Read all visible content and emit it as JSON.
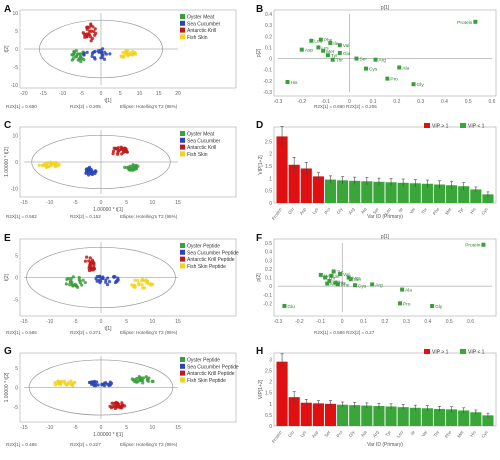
{
  "figure": {
    "panel_letters": [
      "A",
      "B",
      "C",
      "D",
      "E",
      "F",
      "G",
      "H"
    ]
  },
  "colors": {
    "green": "#3a9e3a",
    "blue": "#2b44b8",
    "red": "#c01818",
    "yellow": "#f2d21e",
    "vip_high": "#e01010",
    "vip_low": "#3aa63a"
  },
  "chart_data": [
    {
      "panel": "A",
      "type": "scatter",
      "kind": "score",
      "xlabel": "t[1]",
      "ylabel": "t[2]",
      "xlim": [
        -20,
        20
      ],
      "ylim": [
        -10,
        10
      ],
      "xticks": [
        "-20",
        "-15",
        "-10",
        "-5",
        "0",
        "5",
        "10",
        "15",
        "20"
      ],
      "yticks": [
        "10",
        "5",
        "0",
        "-5",
        "-10"
      ],
      "ytick_values": [
        10,
        5,
        0,
        -5,
        -10
      ],
      "stats": [
        "R2X[1] = 0.690",
        "R2X[2] = 0.205",
        "Ellipse: Hotelling's T2 (95%)"
      ],
      "legend": [
        "Oyster Meat",
        "Sea Cucumber",
        "Antarctic Krill",
        "Fish Skin"
      ],
      "ellipse": {
        "rx": 16,
        "ry": 8
      },
      "clusters": [
        {
          "name": "Oyster Meat",
          "color": "green",
          "cx": -6,
          "cy": -2,
          "sx": 1.5,
          "sy": 1.2
        },
        {
          "name": "Sea Cucumber",
          "color": "blue",
          "cx": -1,
          "cy": -1.5,
          "sx": 2.5,
          "sy": 1.2
        },
        {
          "name": "Antarctic Krill",
          "color": "red",
          "cx": -3,
          "cy": 4.5,
          "sx": 1.2,
          "sy": 1.8
        },
        {
          "name": "Fish Skin",
          "color": "yellow",
          "cx": 7,
          "cy": -1.5,
          "sx": 1.5,
          "sy": 0.8
        }
      ]
    },
    {
      "panel": "B",
      "type": "scatter",
      "kind": "loading",
      "xlabel": "p[1]",
      "ylabel": "p[2]",
      "xlim": [
        -0.3,
        0.6
      ],
      "ylim": [
        -0.3,
        0.4
      ],
      "xticks": [
        "-0.3",
        "-0.2",
        "-0.1",
        "0",
        "0.1",
        "0.2",
        "0.3",
        "0.4",
        "0.5",
        "0.6"
      ],
      "yticks": [
        "0.4",
        "0.3",
        "0.2",
        "0.1",
        "0",
        "-0.1",
        "-0.2",
        "-0.3"
      ],
      "ytick_values": [
        0.4,
        0.3,
        0.2,
        0.1,
        0,
        -0.1,
        -0.2,
        -0.3
      ],
      "stats": [
        "R2X[1] = 0.690  R2X[2] = 0.205"
      ],
      "points": [
        {
          "label": "Protein",
          "x": 0.53,
          "y": 0.33
        },
        {
          "label": "Leu",
          "x": -0.16,
          "y": 0.16
        },
        {
          "label": "Phe",
          "x": -0.12,
          "y": 0.17
        },
        {
          "label": "Ile",
          "x": -0.08,
          "y": 0.14
        },
        {
          "label": "Lys",
          "x": -0.13,
          "y": 0.1
        },
        {
          "label": "Val",
          "x": -0.04,
          "y": 0.12
        },
        {
          "label": "Met",
          "x": -0.11,
          "y": 0.07
        },
        {
          "label": "Glu",
          "x": -0.04,
          "y": 0.05
        },
        {
          "label": "Tyr",
          "x": -0.09,
          "y": 0.03
        },
        {
          "label": "Ser",
          "x": 0.03,
          "y": 0.0
        },
        {
          "label": "Thr",
          "x": -0.07,
          "y": -0.01
        },
        {
          "label": "Arg",
          "x": 0.11,
          "y": -0.01
        },
        {
          "label": "Cys",
          "x": 0.07,
          "y": -0.09
        },
        {
          "label": "Ala",
          "x": 0.21,
          "y": -0.08
        },
        {
          "label": "His",
          "x": -0.26,
          "y": -0.21
        },
        {
          "label": "Pro",
          "x": 0.16,
          "y": -0.18
        },
        {
          "label": "Asp",
          "x": -0.2,
          "y": 0.08
        },
        {
          "label": "Gly",
          "x": 0.27,
          "y": -0.23
        }
      ]
    },
    {
      "panel": "C",
      "type": "scatter",
      "kind": "score",
      "xlabel": "1.00000 * t[1]",
      "ylabel": "1.00000 * t[2]",
      "xlim": [
        -15,
        15
      ],
      "ylim": [
        -12,
        12
      ],
      "xticks": [
        "-15",
        "-10",
        "-5",
        "0",
        "5",
        "10",
        "15"
      ],
      "yticks": [
        "10",
        "0",
        "-10"
      ],
      "ytick_values": [
        10,
        0,
        -10
      ],
      "stats": [
        "R2X[1] = 0.582",
        "R2X[2] = 0.152",
        "Ellipse: Hotelling's T2 (95%)"
      ],
      "legend": [
        "Oyster Meat",
        "Sea Cucumber",
        "Antarctic Krill",
        "Fish Skin"
      ],
      "ellipse": {
        "rx": 13.5,
        "ry": 10
      },
      "clusters": [
        {
          "name": "Oyster Meat",
          "color": "green",
          "cx": 6,
          "cy": -2,
          "sx": 1.0,
          "sy": 0.8
        },
        {
          "name": "Sea Cucumber",
          "color": "blue",
          "cx": -2,
          "cy": -3.5,
          "sx": 0.8,
          "sy": 1.2
        },
        {
          "name": "Antarctic Krill",
          "color": "red",
          "cx": 3.5,
          "cy": 4,
          "sx": 1.2,
          "sy": 1.2
        },
        {
          "name": "Fish Skin",
          "color": "yellow",
          "cx": -10,
          "cy": -1,
          "sx": 1.5,
          "sy": 0.8
        }
      ]
    },
    {
      "panel": "D",
      "type": "bar",
      "kind": "vip",
      "xlabel": "Var ID (Primary)",
      "ylabel": "VIP[1+2]",
      "ylim": [
        0,
        3
      ],
      "yticks": [
        "0",
        "0.5",
        "1",
        "1.5",
        "2",
        "2.5"
      ],
      "ytick_values": [
        0,
        0.5,
        1,
        1.5,
        2,
        2.5
      ],
      "legend": [
        "VIP > 1",
        "VIP < 1"
      ],
      "categories": [
        "Protein",
        "Glu",
        "Asp",
        "Lys",
        "Pro",
        "Gly",
        "Arg",
        "Ala",
        "Ser",
        "Leu",
        "Ile",
        "Val",
        "Thr",
        "Phe",
        "Met",
        "Tyr",
        "His",
        "Cys"
      ],
      "values": [
        2.7,
        1.55,
        1.4,
        1.08,
        0.95,
        0.92,
        0.9,
        0.88,
        0.86,
        0.84,
        0.82,
        0.8,
        0.78,
        0.75,
        0.72,
        0.68,
        0.55,
        0.35
      ],
      "errors": [
        0.4,
        0.3,
        0.25,
        0.15,
        0.15,
        0.15,
        0.15,
        0.15,
        0.15,
        0.15,
        0.15,
        0.15,
        0.15,
        0.15,
        0.15,
        0.15,
        0.1,
        0.1
      ]
    },
    {
      "panel": "E",
      "type": "scatter",
      "kind": "score",
      "xlabel": "t[1]",
      "ylabel": "t[2]",
      "xlim": [
        -15,
        15
      ],
      "ylim": [
        -8,
        8
      ],
      "xticks": [
        "-15",
        "-10",
        "-5",
        "0",
        "5",
        "10",
        "15"
      ],
      "yticks": [
        "5",
        "0",
        "-5"
      ],
      "ytick_values": [
        5,
        0,
        -5
      ],
      "stats": [
        "R2X[1] = 0.586",
        "R2X[2] = 0.271",
        "Ellipse: Hotelling's T2 (95%)"
      ],
      "legend": [
        "Oyster Peptide",
        "Sea Cucumber Peptide",
        "Antarctic Krill Peptide",
        "Fish Skin Peptide"
      ],
      "ellipse": {
        "rx": 14.5,
        "ry": 6.8
      },
      "clusters": [
        {
          "name": "Oyster Peptide",
          "color": "green",
          "cx": -5,
          "cy": -1,
          "sx": 1.5,
          "sy": 0.9
        },
        {
          "name": "Sea Cucumber Peptide",
          "color": "blue",
          "cx": 1,
          "cy": -0.5,
          "sx": 1.8,
          "sy": 0.8
        },
        {
          "name": "Antarctic Krill Peptide",
          "color": "red",
          "cx": -2,
          "cy": 3.5,
          "sx": 0.8,
          "sy": 1.5
        },
        {
          "name": "Fish Skin Peptide",
          "color": "yellow",
          "cx": 8,
          "cy": -1.5,
          "sx": 1.5,
          "sy": 0.9
        }
      ]
    },
    {
      "panel": "F",
      "type": "scatter",
      "kind": "loading",
      "xlabel": "p[1]",
      "ylabel": "p[2]",
      "xlim": [
        -0.3,
        0.7
      ],
      "ylim": [
        -0.3,
        0.5
      ],
      "xticks": [
        "-0.3",
        "-0.2",
        "-0.1",
        "0",
        "0.1",
        "0.2",
        "0.3",
        "0.4",
        "0.5",
        "0.6"
      ],
      "yticks": [
        "0.5",
        "0.4",
        "0.3",
        "0.2",
        "0.1",
        "0",
        "-0.1",
        "-0.2"
      ],
      "ytick_values": [
        0.5,
        0.4,
        0.3,
        0.2,
        0.1,
        0,
        -0.1,
        -0.2
      ],
      "stats": [
        "R2X[1] = 0.586  R2X[2] = 0.27"
      ],
      "points": [
        {
          "label": "Protein",
          "x": 0.66,
          "y": 0.48
        },
        {
          "label": "Lys",
          "x": -0.1,
          "y": 0.13
        },
        {
          "label": "Ile",
          "x": -0.05,
          "y": 0.12
        },
        {
          "label": "Thr",
          "x": -0.08,
          "y": 0.1
        },
        {
          "label": "Tyr",
          "x": -0.04,
          "y": 0.17
        },
        {
          "label": "Val",
          "x": -0.01,
          "y": 0.14
        },
        {
          "label": "Leu",
          "x": -0.06,
          "y": 0.06
        },
        {
          "label": "His",
          "x": -0.03,
          "y": 0.04
        },
        {
          "label": "Ser",
          "x": 0.04,
          "y": 0.08
        },
        {
          "label": "Phe",
          "x": -0.02,
          "y": 0.02
        },
        {
          "label": "Met",
          "x": -0.07,
          "y": 0.03
        },
        {
          "label": "Cys",
          "x": 0.06,
          "y": 0.01
        },
        {
          "label": "Arg",
          "x": 0.14,
          "y": 0.02
        },
        {
          "label": "Ala",
          "x": 0.28,
          "y": -0.04
        },
        {
          "label": "Glu",
          "x": -0.27,
          "y": -0.23
        },
        {
          "label": "Pro",
          "x": 0.27,
          "y": -0.2
        },
        {
          "label": "Gly",
          "x": 0.42,
          "y": -0.23
        },
        {
          "label": "Asp",
          "x": 0.03,
          "y": 0.1
        }
      ]
    },
    {
      "panel": "G",
      "type": "scatter",
      "kind": "score",
      "xlabel": "1.00000 * t[1]",
      "ylabel": "1.00000 * t[2]",
      "xlim": [
        -15,
        15
      ],
      "ylim": [
        -8,
        8
      ],
      "xticks": [
        "-15",
        "-10",
        "-5",
        "0",
        "5",
        "10",
        "15"
      ],
      "yticks": [
        "5",
        "0",
        "-5"
      ],
      "ytick_values": [
        5,
        0,
        -5
      ],
      "stats": [
        "R2X[1] = 0.486",
        "R2X[2] = 0.227",
        "Ellipse: Hotelling's T2 (95%)"
      ],
      "legend": [
        "Oyster Peptide",
        "Sea Cucumber Peptide",
        "Antarctic Krill Peptide",
        "Fish Skin Peptide"
      ],
      "ellipse": {
        "rx": 14,
        "ry": 7
      },
      "clusters": [
        {
          "name": "Oyster Peptide",
          "color": "green",
          "cx": 8,
          "cy": 2,
          "sx": 2.0,
          "sy": 0.6
        },
        {
          "name": "Sea Cucumber Peptide",
          "color": "blue",
          "cx": 0,
          "cy": 1,
          "sx": 1.8,
          "sy": 0.5
        },
        {
          "name": "Antarctic Krill Peptide",
          "color": "red",
          "cx": 3,
          "cy": -4.5,
          "sx": 1.2,
          "sy": 0.6
        },
        {
          "name": "Fish Skin Peptide",
          "color": "yellow",
          "cx": -7,
          "cy": 1,
          "sx": 1.5,
          "sy": 0.6
        }
      ]
    },
    {
      "panel": "H",
      "type": "bar",
      "kind": "vip",
      "xlabel": "Var ID (Primary)",
      "ylabel": "VIP[1+2]",
      "ylim": [
        0,
        3.2
      ],
      "yticks": [
        "0",
        "0.5",
        "1",
        "1.5",
        "2",
        "2.5",
        "3"
      ],
      "ytick_values": [
        0,
        0.5,
        1,
        1.5,
        2,
        2.5,
        3
      ],
      "legend": [
        "VIP > 1",
        "VIP < 1"
      ],
      "categories": [
        "Protein",
        "Glu",
        "Lys",
        "Asp",
        "Ser",
        "Pro",
        "Gly",
        "Ala",
        "Arg",
        "Tyr",
        "Leu",
        "Ile",
        "Val",
        "Thr",
        "Phe",
        "Met",
        "His",
        "Cys"
      ],
      "values": [
        2.9,
        1.3,
        1.05,
        1.02,
        1.0,
        0.96,
        0.94,
        0.92,
        0.9,
        0.88,
        0.85,
        0.82,
        0.8,
        0.77,
        0.75,
        0.7,
        0.62,
        0.48
      ],
      "errors": [
        0.35,
        0.25,
        0.15,
        0.12,
        0.15,
        0.12,
        0.12,
        0.12,
        0.12,
        0.12,
        0.12,
        0.12,
        0.12,
        0.12,
        0.12,
        0.12,
        0.1,
        0.1
      ]
    }
  ]
}
